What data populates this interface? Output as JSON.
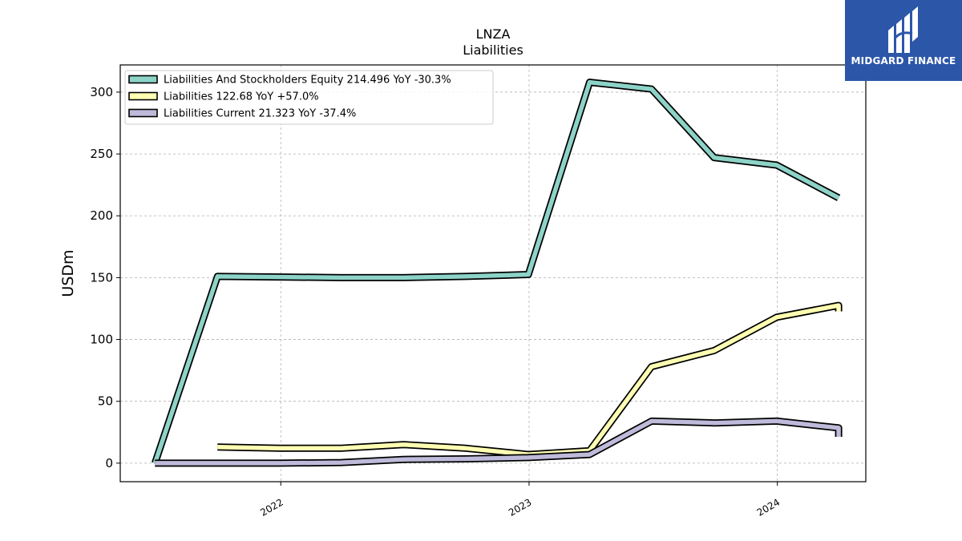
{
  "chart_data": {
    "type": "line",
    "title": "LNZA",
    "subtitle": "Liabilities",
    "ylabel": "USDm",
    "xlabel": "",
    "ylim": [
      -15,
      322
    ],
    "xlim": [
      "2021-05-10",
      "2024-05-10"
    ],
    "yticks": [
      0,
      50,
      100,
      150,
      200,
      250,
      300
    ],
    "xticks": [
      {
        "date": "2022-01-01",
        "label": "2022"
      },
      {
        "date": "2023-01-01",
        "label": "2023"
      },
      {
        "date": "2024-01-01",
        "label": "2024"
      }
    ],
    "grid": true,
    "legend_position": "top-left",
    "series": [
      {
        "name": "Liabilities And Stockholders Equity",
        "legend_label": "Liabilities And Stockholders Equity  214.496 YoY -30.3%",
        "color": "#8dd3c7",
        "points": [
          [
            "2021-06-30",
            0
          ],
          [
            "2021-09-30",
            151
          ],
          [
            "2021-12-31",
            150.5
          ],
          [
            "2022-03-31",
            150
          ],
          [
            "2022-06-30",
            150
          ],
          [
            "2022-09-30",
            151
          ],
          [
            "2022-12-31",
            152.5
          ],
          [
            "2023-03-31",
            308
          ],
          [
            "2023-06-30",
            302.5
          ],
          [
            "2023-09-30",
            247
          ],
          [
            "2023-12-31",
            241
          ],
          [
            "2024-03-31",
            214.5
          ]
        ]
      },
      {
        "name": "Liabilities",
        "legend_label": "Liabilities  122.68 YoY +57.0%",
        "color": "#ffffb3",
        "points": [
          [
            "2021-09-30",
            13
          ],
          [
            "2021-12-31",
            12
          ],
          [
            "2022-03-31",
            12
          ],
          [
            "2022-06-30",
            15
          ],
          [
            "2022-09-30",
            12
          ],
          [
            "2022-12-31",
            7
          ],
          [
            "2023-03-31",
            10
          ],
          [
            "2023-06-30",
            78
          ],
          [
            "2023-09-30",
            91
          ],
          [
            "2023-12-31",
            118
          ],
          [
            "2024-03-31",
            127.5
          ],
          [
            "2024-03-31",
            122.7
          ]
        ]
      },
      {
        "name": "Liabilities Current",
        "legend_label": "Liabilities Current  21.323 YoY -37.4%",
        "color": "#bebada",
        "points": [
          [
            "2021-06-30",
            0
          ],
          [
            "2021-09-30",
            0
          ],
          [
            "2021-12-31",
            0
          ],
          [
            "2022-03-31",
            0.5
          ],
          [
            "2022-06-30",
            3
          ],
          [
            "2022-09-30",
            3.5
          ],
          [
            "2022-12-31",
            4.5
          ],
          [
            "2023-03-31",
            7
          ],
          [
            "2023-06-30",
            34
          ],
          [
            "2023-09-30",
            32.5
          ],
          [
            "2023-12-31",
            34
          ],
          [
            "2024-03-31",
            28.5
          ],
          [
            "2024-03-31",
            21.3
          ]
        ]
      }
    ]
  },
  "logo": {
    "text": "MIDGARD FINANCE",
    "color": "#2c56a8"
  }
}
